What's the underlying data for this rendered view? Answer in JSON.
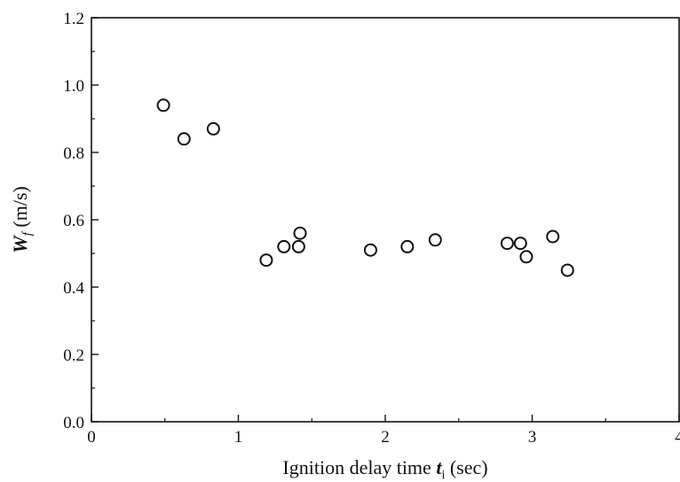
{
  "chart_data": {
    "type": "scatter",
    "xlabel_prefix": "Ignition delay time ",
    "xlabel_var": "t",
    "xlabel_sub": "i",
    "xlabel_suffix": " (sec)",
    "ylabel_var": "W",
    "ylabel_sub": "f",
    "ylabel_suffix": "  (m/s)",
    "xlim": [
      0,
      4
    ],
    "ylim": [
      0.0,
      1.2
    ],
    "x_ticks": [
      "0",
      "1",
      "2",
      "3",
      "4"
    ],
    "y_ticks": [
      "0.0",
      "0.2",
      "0.4",
      "0.6",
      "0.8",
      "1.0",
      "1.2"
    ],
    "grid": false,
    "marker": "open-circle",
    "points": [
      {
        "x": 0.49,
        "y": 0.94
      },
      {
        "x": 0.63,
        "y": 0.84
      },
      {
        "x": 0.83,
        "y": 0.87
      },
      {
        "x": 1.19,
        "y": 0.48
      },
      {
        "x": 1.31,
        "y": 0.52
      },
      {
        "x": 1.41,
        "y": 0.52
      },
      {
        "x": 1.42,
        "y": 0.56
      },
      {
        "x": 1.9,
        "y": 0.51
      },
      {
        "x": 2.15,
        "y": 0.52
      },
      {
        "x": 2.34,
        "y": 0.54
      },
      {
        "x": 2.83,
        "y": 0.53
      },
      {
        "x": 2.92,
        "y": 0.53
      },
      {
        "x": 2.96,
        "y": 0.49
      },
      {
        "x": 3.14,
        "y": 0.55
      },
      {
        "x": 3.24,
        "y": 0.45
      }
    ]
  }
}
